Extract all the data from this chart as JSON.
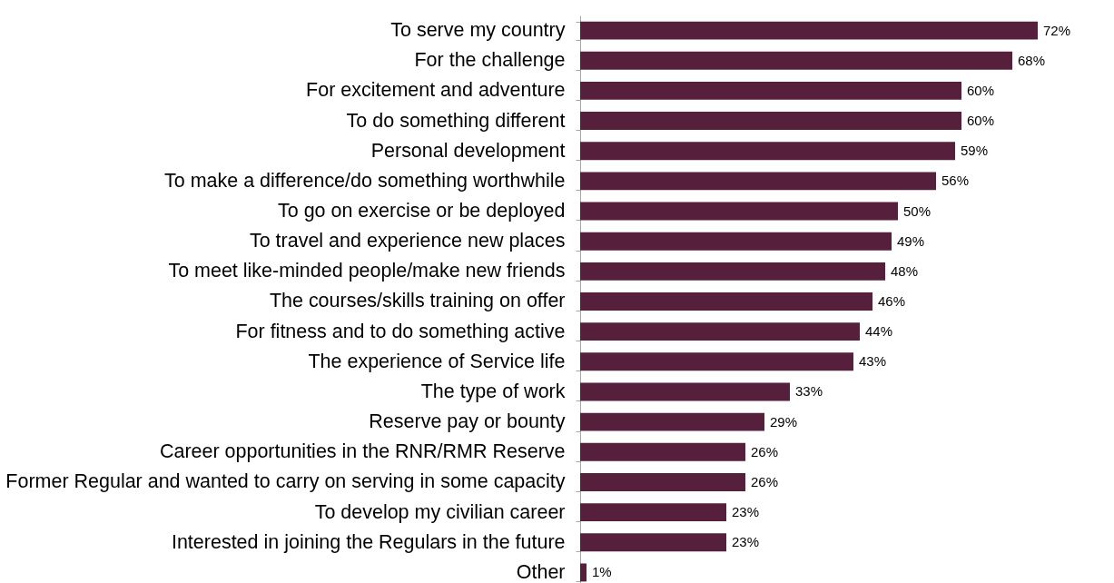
{
  "chart_data": {
    "type": "bar",
    "orientation": "horizontal",
    "color": "#561f3c",
    "categories": [
      "To serve my country",
      "For the challenge",
      "For excitement and adventure",
      "To do something different",
      "Personal development",
      "To make a difference/do something worthwhile",
      "To go on exercise or be deployed",
      "To travel and experience new places",
      "To meet like-minded people/make new friends",
      "The courses/skills training on offer",
      "For fitness and to do something active",
      "The experience of Service life",
      "The type of work",
      "Reserve pay or bounty",
      "Career opportunities in the RNR/RMR Reserve",
      "Former Regular and wanted to carry on serving in some capacity",
      "To develop my civilian career",
      "Interested in joining the Regulars in the future",
      "Other"
    ],
    "values": [
      72,
      68,
      60,
      60,
      59,
      56,
      50,
      49,
      48,
      46,
      44,
      43,
      33,
      29,
      26,
      26,
      23,
      23,
      1
    ],
    "value_labels": [
      "72%",
      "68%",
      "60%",
      "60%",
      "59%",
      "56%",
      "50%",
      "49%",
      "48%",
      "46%",
      "44%",
      "43%",
      "33%",
      "29%",
      "26%",
      "26%",
      "23%",
      "23%",
      "1%"
    ]
  }
}
